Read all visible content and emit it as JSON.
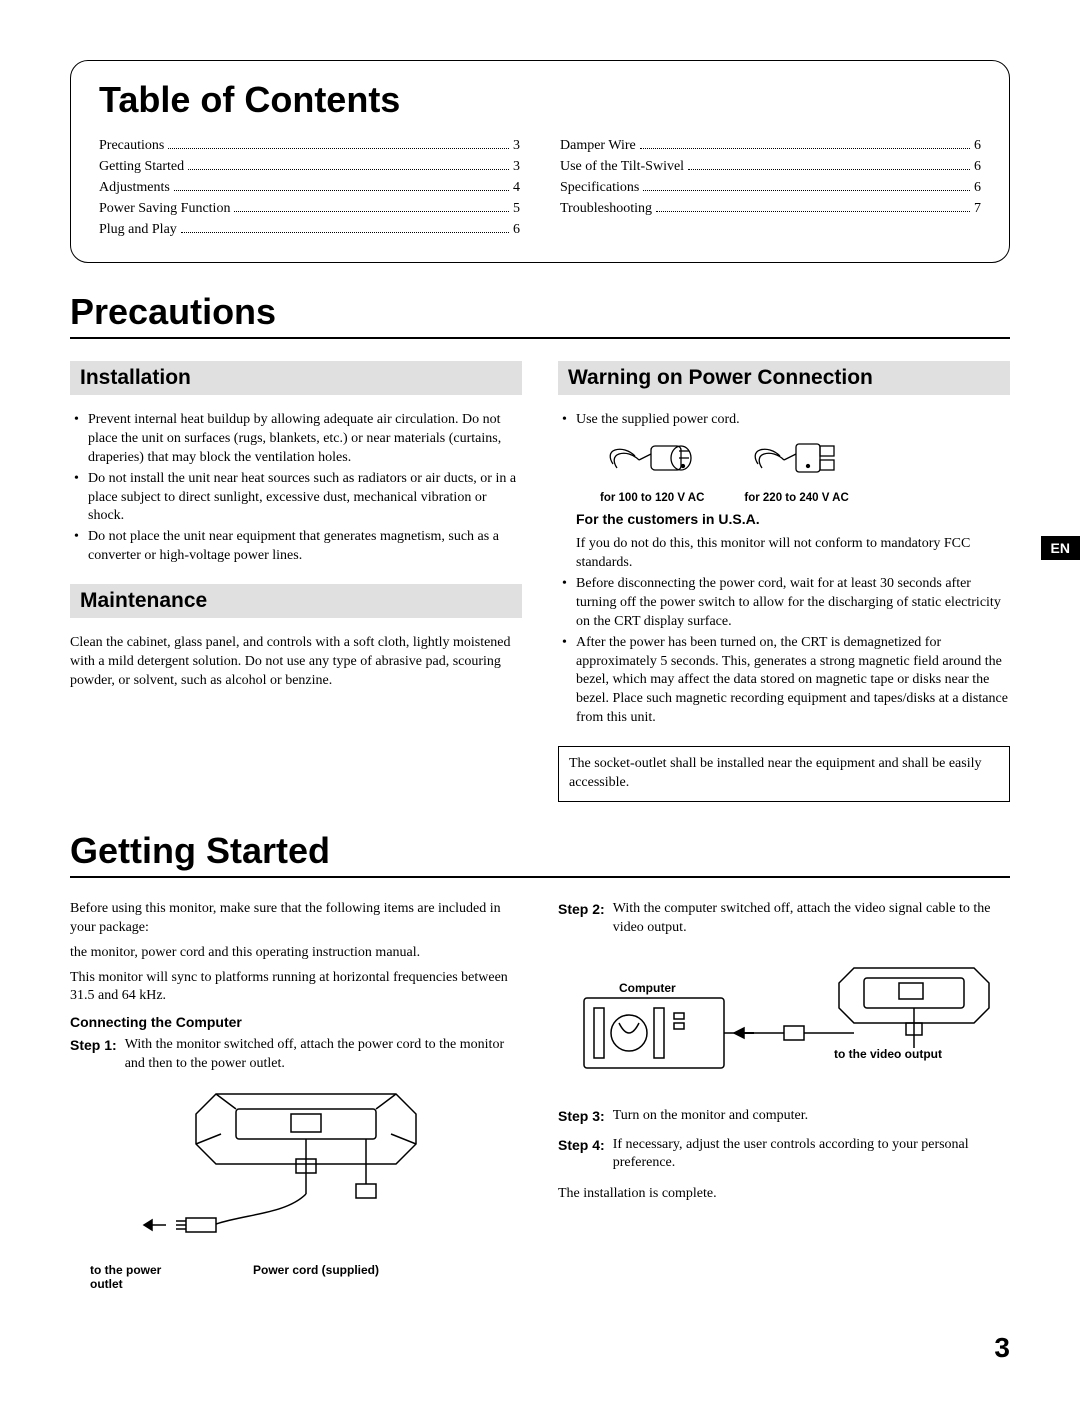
{
  "toc": {
    "title": "Table of Contents",
    "left": [
      {
        "label": "Precautions",
        "page": "3"
      },
      {
        "label": "Getting Started",
        "page": "3"
      },
      {
        "label": "Adjustments",
        "page": "4"
      },
      {
        "label": "Power Saving Function",
        "page": "5"
      },
      {
        "label": "Plug and Play",
        "page": "6"
      }
    ],
    "right": [
      {
        "label": "Damper Wire",
        "page": "6"
      },
      {
        "label": "Use of the Tilt-Swivel",
        "page": "6"
      },
      {
        "label": "Specifications",
        "page": "6"
      },
      {
        "label": "Troubleshooting",
        "page": "7"
      }
    ]
  },
  "precautions": {
    "title": "Precautions",
    "installation": {
      "heading": "Installation",
      "items": [
        "Prevent internal heat buildup by allowing adequate air circulation. Do not place the unit on surfaces (rugs, blankets, etc.) or near materials (curtains, draperies) that may block the ventilation holes.",
        "Do not install the unit near heat sources such as radiators or air ducts, or in a place subject to direct sunlight, excessive dust, mechanical vibration or shock.",
        "Do not place the unit near equipment that generates magnetism, such as a converter or high-voltage power lines."
      ]
    },
    "maintenance": {
      "heading": "Maintenance",
      "text": "Clean the cabinet, glass panel, and controls with a soft cloth, lightly moistened with a mild detergent solution. Do not use any type of abrasive pad, scouring powder, or solvent, such as alcohol or benzine."
    },
    "warning": {
      "heading": "Warning on Power Connection",
      "item1": "Use the supplied power cord.",
      "plug1_caption": "for 100 to 120 V AC",
      "plug2_caption": "for 220 to 240 V AC",
      "usa_heading": "For the customers in U.S.A.",
      "usa_text": "If you do not do this, this monitor will not conform to mandatory FCC standards.",
      "item2": "Before disconnecting the power cord, wait for at least 30 seconds after turning off the power switch to allow for the discharging of static electricity on the CRT display surface.",
      "item3": "After the power has been turned on, the CRT is demagnetized for approximately 5 seconds. This, generates a strong magnetic field around the bezel, which may affect the data stored on magnetic tape or disks near the bezel. Place such magnetic recording equipment and tapes/disks at a distance from this unit.",
      "note": "The socket-outlet shall be installed near the equipment and shall be easily accessible."
    }
  },
  "getting_started": {
    "title": "Getting Started",
    "intro1": "Before using this monitor, make sure that the following items are included in your package:",
    "intro2": "the monitor, power cord and this operating instruction manual.",
    "intro3": "This monitor will sync to platforms running at horizontal frequencies between 31.5 and 64 kHz.",
    "connecting_heading": "Connecting the Computer",
    "step1_label": "Step 1:",
    "step1_text": "With the monitor switched off, attach the power cord to the monitor and then to the power outlet.",
    "fig1_left": "to the power outlet",
    "fig1_right": "Power cord (supplied)",
    "step2_label": "Step 2:",
    "step2_text": "With the computer switched off, attach the video signal cable to the video output.",
    "fig2_computer": "Computer",
    "fig2_video": "to the video output",
    "step3_label": "Step 3:",
    "step3_text": "Turn on the monitor and computer.",
    "step4_label": "Step 4:",
    "step4_text": "If necessary, adjust the user controls according to your personal preference.",
    "outro": "The installation is complete."
  },
  "lang_tab": "EN",
  "page_number": "3"
}
